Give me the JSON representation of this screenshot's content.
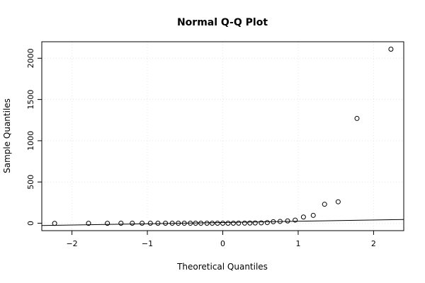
{
  "chart_data": {
    "type": "scatter",
    "title": "Normal Q-Q Plot",
    "xlabel": "Theoretical Quantiles",
    "ylabel": "Sample Quantiles",
    "xlim": [
      -2.4,
      2.4
    ],
    "ylim": [
      -90,
      2200
    ],
    "x_ticks": [
      -2,
      -1,
      0,
      1,
      2
    ],
    "x_tick_labels": [
      "−2",
      "−1",
      "0",
      "1",
      "2"
    ],
    "y_ticks": [
      0,
      500,
      1000,
      1500,
      2000
    ],
    "y_tick_labels": [
      "0",
      "500",
      "1000",
      "1500",
      "2000"
    ],
    "grid": true,
    "reference_line": {
      "x": [
        -2.4,
        2.4
      ],
      "y": [
        -28,
        45
      ]
    },
    "points": {
      "x": [
        -2.23,
        -1.78,
        -1.53,
        -1.35,
        -1.2,
        -1.07,
        -0.96,
        -0.86,
        -0.76,
        -0.67,
        -0.59,
        -0.51,
        -0.43,
        -0.36,
        -0.29,
        -0.21,
        -0.14,
        -0.07,
        0.0,
        0.07,
        0.14,
        0.21,
        0.29,
        0.36,
        0.43,
        0.51,
        0.59,
        0.67,
        0.76,
        0.86,
        0.96,
        1.07,
        1.2,
        1.35,
        1.53,
        1.78,
        2.23
      ],
      "y": [
        -2,
        -1,
        -1,
        0,
        0,
        0,
        0,
        0,
        0,
        0,
        0,
        0,
        0,
        0,
        0,
        0,
        0,
        0,
        0,
        0,
        0,
        1,
        1,
        2,
        3,
        4,
        8,
        18,
        22,
        28,
        38,
        75,
        95,
        230,
        260,
        1270,
        2110
      ]
    }
  }
}
